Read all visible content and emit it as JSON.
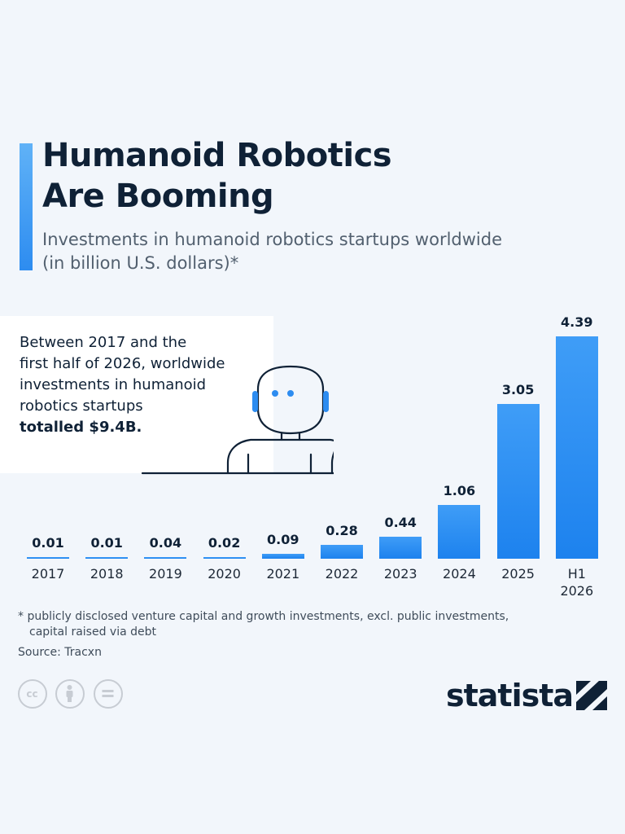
{
  "header": {
    "title_lines": [
      "Humanoid Robotics",
      "Are Booming"
    ],
    "subtitle_lines": [
      "Investments in humanoid robotics startups worldwide",
      "(in billion U.S. dollars)*"
    ]
  },
  "callout": {
    "lines": [
      "Between 2017 and the",
      "first half of 2026, worldwide",
      "investments in humanoid",
      "robotics startups"
    ],
    "highlight": "totalled $9.4B."
  },
  "chart_data": {
    "type": "bar",
    "categories": [
      "2017",
      "2018",
      "2019",
      "2020",
      "2021",
      "2022",
      "2023",
      "2024",
      "2025",
      "H1 2026"
    ],
    "values": [
      0.01,
      0.01,
      0.04,
      0.02,
      0.09,
      0.28,
      0.44,
      1.06,
      3.05,
      4.39
    ],
    "value_labels": [
      "0.01",
      "0.01",
      "0.04",
      "0.02",
      "0.09",
      "0.28",
      "0.44",
      "1.06",
      "3.05",
      "4.39"
    ],
    "title": "Humanoid Robotics Are Booming",
    "subtitle": "Investments in humanoid robotics startups worldwide (in billion U.S. dollars)*",
    "unit": "billion U.S. dollars",
    "grid": false,
    "legend": "none",
    "color": "#2b8ff2"
  },
  "footer": {
    "footnote_lines": [
      "* publicly disclosed venture capital and growth investments, excl. public investments,",
      "capital raised via debt"
    ],
    "source": "Source: Tracxn",
    "license_icons": [
      "cc-icon",
      "attribution-icon",
      "no-derivatives-icon"
    ],
    "brand": "statista"
  },
  "colors": {
    "background": "#f2f6fb",
    "accent": "#2d8cf0",
    "text": "#0f2136",
    "bar": "#2b8ff2"
  }
}
